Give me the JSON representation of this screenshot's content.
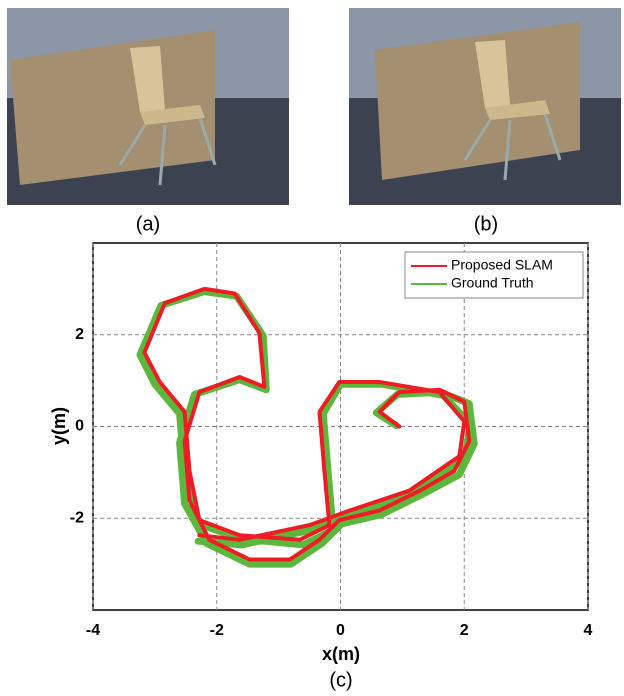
{
  "captions": [
    "(a)",
    "(b)",
    "(c)"
  ],
  "chart_data": {
    "type": "line",
    "xlabel": "x(m)",
    "ylabel": "y(m)",
    "xlim": [
      -4,
      4
    ],
    "ylim": [
      -4,
      4
    ],
    "xticks": [
      -4,
      -2,
      0,
      2,
      4
    ],
    "yticks": [
      -2,
      0,
      2
    ],
    "grid": true,
    "legend": "upper right",
    "series": [
      {
        "name": "Proposed SLAM",
        "color": "#ee1c24",
        "x": [
          0.95,
          0.63,
          0.95,
          1.6,
          2.0,
          2.08,
          1.84,
          1.28,
          0.63,
          -0.02,
          -0.34,
          -0.82,
          -1.47,
          -2.12,
          -2.44,
          -2.52,
          -2.28,
          -1.63,
          -1.23,
          -1.31,
          -1.71,
          -2.2,
          -2.84,
          -3.17,
          -2.92,
          -2.52,
          -2.44,
          -2.28,
          -1.63,
          -0.66,
          -0.18,
          -0.26,
          -0.34,
          -0.02,
          0.63,
          1.6,
          2.0,
          1.92,
          1.11,
          0.15,
          -0.5,
          -1.63,
          -2.28
        ],
        "values": [
          0,
          0.32,
          0.75,
          0.8,
          0.54,
          -0.32,
          -0.97,
          -1.4,
          -1.83,
          -2.04,
          -2.47,
          -2.9,
          -2.9,
          -2.47,
          -1.61,
          -0.32,
          0.75,
          1.08,
          0.86,
          2.04,
          2.9,
          3.0,
          2.69,
          1.61,
          0.97,
          0.32,
          -0.97,
          -2.04,
          -2.37,
          -2.47,
          -2.15,
          -0.97,
          0.32,
          0.97,
          0.97,
          0.75,
          0.11,
          -0.65,
          -1.4,
          -1.83,
          -2.15,
          -2.47,
          -2.37
        ]
      },
      {
        "name": "Ground Truth",
        "color": "#5cb83c",
        "x": [
          0.9,
          0.58,
          0.92,
          1.62,
          2.08,
          2.16,
          1.92,
          1.32,
          0.66,
          0.02,
          -0.3,
          -0.8,
          -1.47,
          -2.16,
          -2.52,
          -2.6,
          -2.36,
          -1.63,
          -1.2,
          -1.25,
          -1.68,
          -2.2,
          -2.9,
          -3.24,
          -3.0,
          -2.6,
          -2.52,
          -2.3,
          -1.6,
          -0.6,
          -0.12,
          -0.2,
          -0.28,
          0.0,
          0.68,
          1.66,
          2.1,
          2.0,
          1.16,
          0.2,
          -0.45,
          -1.6,
          -2.3
        ],
        "values": [
          0.02,
          0.3,
          0.7,
          0.75,
          0.5,
          -0.38,
          -1.05,
          -1.48,
          -1.92,
          -2.12,
          -2.55,
          -3.0,
          -3.0,
          -2.55,
          -1.68,
          -0.35,
          0.7,
          1.02,
          0.8,
          1.98,
          2.84,
          2.94,
          2.64,
          1.56,
          0.92,
          0.28,
          -1.02,
          -2.12,
          -2.45,
          -2.58,
          -2.25,
          -1.0,
          0.28,
          0.92,
          0.92,
          0.68,
          0.05,
          -0.72,
          -1.48,
          -1.92,
          -2.25,
          -2.58,
          -2.5
        ]
      }
    ]
  }
}
